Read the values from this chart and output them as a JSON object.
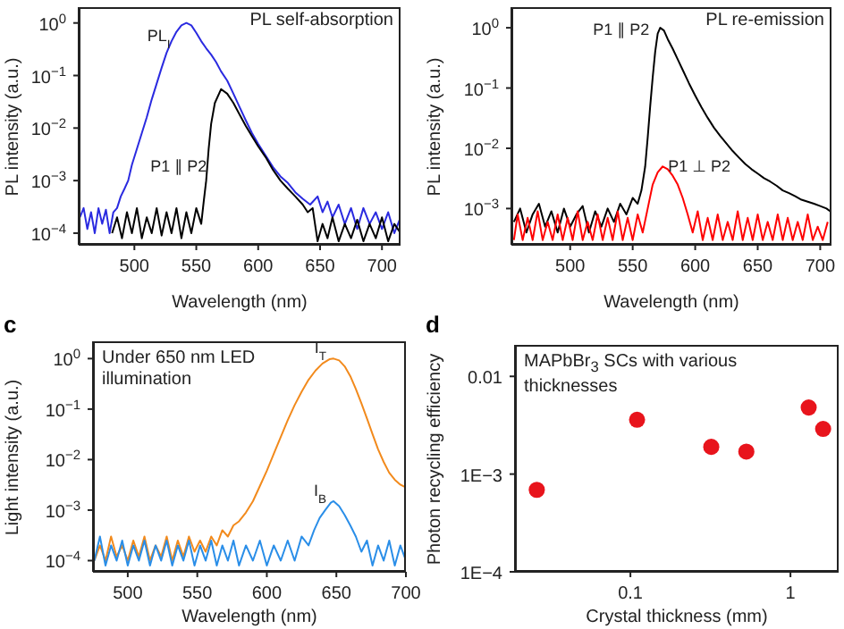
{
  "chart_data": [
    {
      "type": "line",
      "xlabel": "Wavelength (nm)",
      "ylabel": "PL intensity (a.u.)",
      "annotations": [
        "PL self-absorption"
      ],
      "log": "y",
      "xlim": [
        455,
        715
      ],
      "ylim": [
        6e-05,
        2
      ],
      "xticks": [
        500,
        550,
        600,
        650,
        700
      ],
      "yticks": [
        {
          "value": 0.0001,
          "label": "10$^{−4}$"
        },
        {
          "value": 0.001,
          "label": "10$^{−3}$"
        },
        {
          "value": 0.01,
          "label": "10$^{−2}$"
        },
        {
          "value": 0.1,
          "label": "10$^{−1}$"
        },
        {
          "value": 1,
          "label": "10$^{0}$"
        }
      ],
      "grid": false,
      "legend": false,
      "marker": "none",
      "line_style": "solid",
      "series": [
        {
          "name": "PL$_{I}$",
          "color": "#2a2ae0",
          "x": [
            456,
            459,
            462,
            465,
            468,
            471,
            474,
            477,
            480,
            483,
            486,
            489,
            492,
            495,
            498,
            502,
            506,
            510,
            514,
            518,
            522,
            526,
            530,
            534,
            538,
            542,
            546,
            550,
            554,
            558,
            562,
            566,
            570,
            575,
            580,
            585,
            590,
            595,
            600,
            606,
            612,
            618,
            624,
            630,
            636,
            642,
            648,
            652,
            656,
            660,
            665,
            670,
            675,
            680,
            685,
            690,
            695,
            700,
            705,
            710,
            715
          ],
          "values": [
            0.0002,
            0.0003,
            0.00012,
            0.00025,
            0.0001,
            0.0003,
            0.00015,
            0.00028,
            0.0001,
            0.00025,
            0.0003,
            0.0005,
            0.0007,
            0.001,
            0.002,
            0.004,
            0.008,
            0.016,
            0.035,
            0.07,
            0.14,
            0.27,
            0.45,
            0.68,
            0.9,
            1,
            0.9,
            0.65,
            0.45,
            0.33,
            0.25,
            0.18,
            0.12,
            0.08,
            0.045,
            0.025,
            0.014,
            0.008,
            0.005,
            0.003,
            0.0018,
            0.0012,
            0.0009,
            0.0006,
            0.00045,
            0.00035,
            0.0005,
            0.00025,
            0.0004,
            0.0002,
            0.00035,
            0.00015,
            0.0003,
            0.00012,
            0.0003,
            0.00015,
            0.00025,
            0.00012,
            0.00025,
            0.0001,
            0.0002
          ]
        },
        {
          "name": "P1 ∥ P2",
          "color": "#000000",
          "x": [
            482,
            486,
            490,
            494,
            498,
            502,
            506,
            510,
            514,
            518,
            522,
            526,
            530,
            534,
            538,
            542,
            546,
            550,
            554,
            556,
            558,
            560,
            562,
            565,
            570,
            575,
            580,
            585,
            590,
            595,
            600,
            606,
            612,
            618,
            624,
            630,
            636,
            640,
            644,
            647,
            648,
            652,
            656,
            660,
            665,
            670,
            675,
            680,
            685,
            690,
            695,
            700,
            705,
            710,
            715
          ],
          "values": [
            0.0001,
            0.0002,
            8e-05,
            0.00025,
            0.0001,
            0.0003,
            8e-05,
            0.0002,
            0.0001,
            0.0003,
            9e-05,
            0.00025,
            0.0001,
            0.0003,
            8e-05,
            0.00025,
            0.0001,
            0.0003,
            0.00015,
            0.0004,
            0.001,
            0.004,
            0.012,
            0.03,
            0.055,
            0.045,
            0.03,
            0.018,
            0.011,
            0.007,
            0.0045,
            0.0028,
            0.0016,
            0.001,
            0.0007,
            0.0005,
            0.00035,
            0.00025,
            0.0003,
            0.0001,
            7e-05,
            0.00015,
            8e-05,
            0.0002,
            7e-05,
            0.00015,
            8e-05,
            0.00018,
            7e-05,
            0.00015,
            8e-05,
            0.0002,
            7e-05,
            0.00015,
            0.0001
          ]
        }
      ]
    },
    {
      "type": "line",
      "xlabel": "Wavelength (nm)",
      "ylabel": "PL intensity (a.u.)",
      "annotations": [
        "PL re-emission"
      ],
      "log": "y",
      "xlim": [
        453,
        709
      ],
      "ylim": [
        0.00025,
        2.2
      ],
      "xticks": [
        500,
        550,
        600,
        650,
        700
      ],
      "yticks": [
        {
          "value": 0.001,
          "label": "10$^{−3}$"
        },
        {
          "value": 0.01,
          "label": "10$^{−2}$"
        },
        {
          "value": 0.1,
          "label": "10$^{−1}$"
        },
        {
          "value": 1,
          "label": "10$^{0}$"
        }
      ],
      "grid": false,
      "legend": false,
      "marker": "none",
      "line_style": "solid",
      "series": [
        {
          "name": "P1 ∥ P2",
          "color": "#000000",
          "x": [
            455,
            460,
            465,
            470,
            475,
            480,
            485,
            490,
            495,
            500,
            505,
            510,
            515,
            520,
            525,
            530,
            535,
            540,
            545,
            550,
            554,
            557,
            560,
            562,
            564,
            566,
            568,
            570,
            572,
            575,
            578,
            582,
            586,
            590,
            595,
            600,
            605,
            610,
            615,
            620,
            625,
            630,
            635,
            640,
            645,
            650,
            655,
            660,
            665,
            670,
            675,
            680,
            685,
            690,
            695,
            700,
            705,
            708
          ],
          "values": [
            0.0006,
            0.001,
            0.0004,
            0.0008,
            0.0012,
            0.0005,
            0.0009,
            0.0004,
            0.001,
            0.0005,
            0.0008,
            0.0011,
            0.0004,
            0.0009,
            0.0005,
            0.001,
            0.0006,
            0.0012,
            0.0008,
            0.0015,
            0.0012,
            0.002,
            0.005,
            0.015,
            0.05,
            0.15,
            0.4,
            0.8,
            1,
            0.9,
            0.65,
            0.45,
            0.3,
            0.2,
            0.12,
            0.075,
            0.048,
            0.032,
            0.022,
            0.016,
            0.012,
            0.009,
            0.007,
            0.0055,
            0.0045,
            0.0038,
            0.0032,
            0.0028,
            0.0024,
            0.002,
            0.0018,
            0.0016,
            0.0014,
            0.0013,
            0.0012,
            0.0011,
            0.001,
            0.0009
          ]
        },
        {
          "name": "P1 ⊥ P2",
          "color": "#ff0000",
          "x": [
            455,
            458,
            462,
            466,
            470,
            474,
            478,
            482,
            486,
            490,
            494,
            498,
            502,
            506,
            510,
            514,
            518,
            522,
            526,
            530,
            534,
            538,
            542,
            546,
            550,
            554,
            558,
            562,
            566,
            570,
            574,
            578,
            582,
            586,
            590,
            594,
            598,
            602,
            606,
            610,
            614,
            618,
            622,
            626,
            630,
            634,
            638,
            642,
            646,
            650,
            654,
            658,
            662,
            666,
            670,
            674,
            678,
            682,
            686,
            690,
            694,
            698,
            702,
            706
          ],
          "values": [
            0.0003,
            0.0008,
            0.0003,
            0.0007,
            0.0003,
            0.0009,
            0.0003,
            0.0006,
            0.0003,
            0.0008,
            0.0003,
            0.0007,
            0.0003,
            0.0009,
            0.0003,
            0.0006,
            0.0003,
            0.0008,
            0.0003,
            0.0007,
            0.0003,
            0.0009,
            0.0003,
            0.0007,
            0.0003,
            0.0008,
            0.0004,
            0.001,
            0.0025,
            0.004,
            0.005,
            0.0045,
            0.0035,
            0.0025,
            0.0015,
            0.0008,
            0.0004,
            0.0009,
            0.0003,
            0.0007,
            0.0003,
            0.0008,
            0.0003,
            0.0006,
            0.0003,
            0.0009,
            0.0003,
            0.0007,
            0.0003,
            0.0008,
            0.0003,
            0.0006,
            0.0003,
            0.0008,
            0.0003,
            0.0007,
            0.0003,
            0.0006,
            0.0003,
            0.0008,
            0.0003,
            0.0005,
            0.0003,
            0.0006
          ]
        }
      ]
    },
    {
      "type": "line",
      "title": "c",
      "xlabel": "Wavelength (nm)",
      "ylabel": "Light intensity (a.u.)",
      "annotations": [
        "Under 650 nm LED illumination"
      ],
      "log": "y",
      "xlim": [
        475,
        700
      ],
      "ylim": [
        6e-05,
        2.2
      ],
      "xticks": [
        500,
        550,
        600,
        650,
        700
      ],
      "yticks": [
        {
          "value": 0.0001,
          "label": "10$^{−4}$"
        },
        {
          "value": 0.001,
          "label": "10$^{−3}$"
        },
        {
          "value": 0.01,
          "label": "10$^{−2}$"
        },
        {
          "value": 0.1,
          "label": "10$^{−1}$"
        },
        {
          "value": 1,
          "label": "10$^{0}$"
        }
      ],
      "grid": false,
      "legend": false,
      "marker": "none",
      "line_style": "solid",
      "series": [
        {
          "name": "I$_{T}$",
          "color": "#f28a1c",
          "x": [
            476,
            480,
            484,
            488,
            492,
            496,
            500,
            504,
            508,
            512,
            516,
            520,
            524,
            528,
            532,
            536,
            540,
            544,
            548,
            552,
            556,
            560,
            564,
            568,
            572,
            576,
            580,
            585,
            590,
            595,
            600,
            605,
            610,
            615,
            620,
            625,
            630,
            635,
            640,
            645,
            648,
            652,
            656,
            660,
            664,
            668,
            672,
            676,
            680,
            684,
            688,
            692,
            696,
            700
          ],
          "values": [
            0.0001,
            0.0002,
            0.0001,
            0.0003,
            0.00012,
            0.0002,
            0.0001,
            0.00025,
            0.00012,
            0.0003,
            0.0001,
            0.0002,
            0.00012,
            0.0003,
            0.0001,
            0.00025,
            0.00012,
            0.0003,
            0.00015,
            0.00025,
            0.00015,
            0.0003,
            0.0002,
            0.0004,
            0.0003,
            0.0005,
            0.0006,
            0.0009,
            0.0015,
            0.003,
            0.006,
            0.013,
            0.028,
            0.06,
            0.12,
            0.22,
            0.38,
            0.58,
            0.8,
            0.97,
            1,
            0.92,
            0.7,
            0.45,
            0.25,
            0.13,
            0.065,
            0.032,
            0.016,
            0.009,
            0.0055,
            0.004,
            0.0032,
            0.0028
          ]
        },
        {
          "name": "I$_{B}$",
          "color": "#2a8ee8",
          "x": [
            476,
            480,
            484,
            488,
            492,
            496,
            500,
            504,
            508,
            512,
            516,
            520,
            524,
            528,
            532,
            536,
            540,
            544,
            548,
            552,
            556,
            560,
            564,
            568,
            572,
            576,
            580,
            585,
            590,
            595,
            600,
            605,
            610,
            615,
            620,
            625,
            630,
            634,
            638,
            642,
            646,
            648,
            652,
            656,
            660,
            664,
            668,
            672,
            676,
            680,
            684,
            688,
            692,
            696,
            700
          ],
          "values": [
            0.0001,
            0.0003,
            8e-05,
            0.0002,
            0.0001,
            0.00025,
            8e-05,
            0.0002,
            0.0001,
            0.00025,
            8e-05,
            0.0002,
            0.0001,
            0.00025,
            8e-05,
            0.0002,
            0.0001,
            0.00025,
            8e-05,
            0.0002,
            0.0001,
            0.00025,
            8e-05,
            0.0002,
            0.0001,
            0.00025,
            8e-05,
            0.0002,
            0.0001,
            0.00025,
            8e-05,
            0.0002,
            0.0001,
            0.00025,
            0.0001,
            0.0003,
            0.0002,
            0.0004,
            0.0007,
            0.001,
            0.0014,
            0.0015,
            0.0012,
            0.0008,
            0.0005,
            0.0003,
            0.00015,
            0.00025,
            8e-05,
            0.0002,
            0.0001,
            0.00025,
            8e-05,
            0.0002,
            0.0001
          ]
        }
      ]
    },
    {
      "type": "scatter",
      "title": "d",
      "xlabel": "Crystal thickness (mm)",
      "ylabel": "Photon recycling efficiency",
      "annotations": [
        "MAPbBr$_{3}$ SCs with various thicknesses"
      ],
      "log": "xy",
      "xlim": [
        0.019,
        2
      ],
      "ylim": [
        0.0001,
        0.021
      ],
      "xticks": [
        0.1,
        1
      ],
      "yticks": [
        {
          "value": 0.0001,
          "label": "1E−4"
        },
        {
          "value": 0.001,
          "label": "1E−3"
        },
        0.01
      ],
      "grid": false,
      "legend": false,
      "marker": "circle",
      "series": [
        {
          "color": "#e8141c",
          "x": [
            0.026,
            0.11,
            0.32,
            0.53,
            1.3,
            1.6
          ],
          "values": [
            0.00069,
            0.0036,
            0.0019,
            0.0017,
            0.0048,
            0.0029
          ]
        }
      ]
    }
  ]
}
